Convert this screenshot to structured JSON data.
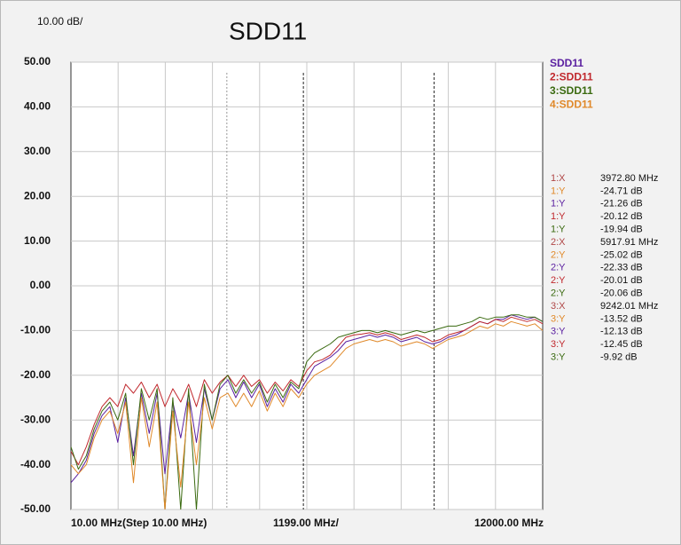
{
  "chart_data": {
    "type": "line",
    "title": "SDD11",
    "scale_label": "10.00 dB/",
    "x_axis_labels": {
      "start": "10.00 MHz(Step 10.00 MHz)",
      "scale": "1199.00 MHz/",
      "stop": "12000.00 MHz"
    },
    "xlim": [
      10,
      12000
    ],
    "ylim": [
      -50,
      50
    ],
    "yticks": [
      {
        "value": 50,
        "label": "50.00"
      },
      {
        "value": 40,
        "label": "40.00"
      },
      {
        "value": 30,
        "label": "30.00"
      },
      {
        "value": 20,
        "label": "20.00"
      },
      {
        "value": 10,
        "label": "10.00"
      },
      {
        "value": 0,
        "label": "0.00"
      },
      {
        "value": -10,
        "label": "-10.00"
      },
      {
        "value": -20,
        "label": "-20.00"
      },
      {
        "value": -30,
        "label": "-30.00"
      },
      {
        "value": -40,
        "label": "-40.00"
      },
      {
        "value": -50,
        "label": "-50.00"
      }
    ],
    "grid": true,
    "legend": "top-right",
    "x": [
      10,
      200,
      400,
      600,
      800,
      1000,
      1200,
      1400,
      1600,
      1800,
      2000,
      2200,
      2400,
      2600,
      2800,
      3000,
      3200,
      3400,
      3600,
      3800,
      4000,
      4200,
      4400,
      4600,
      4800,
      5000,
      5200,
      5400,
      5600,
      5800,
      6000,
      6200,
      6400,
      6600,
      6800,
      7000,
      7200,
      7400,
      7600,
      7800,
      8000,
      8200,
      8400,
      8600,
      8800,
      9000,
      9200,
      9400,
      9600,
      9800,
      10000,
      10200,
      10400,
      10600,
      10800,
      11000,
      11200,
      11400,
      11600,
      11800,
      12000
    ],
    "series": [
      {
        "name": "SDD11",
        "color": "#5a1fa0",
        "values": [
          -44,
          -42,
          -39,
          -33,
          -29,
          -27,
          -35,
          -25,
          -38,
          -24,
          -33,
          -24,
          -42,
          -26,
          -34,
          -24,
          -35,
          -23,
          -30,
          -23,
          -21,
          -25,
          -21.5,
          -25,
          -22,
          -27,
          -23,
          -26,
          -22,
          -24,
          -21,
          -18,
          -17,
          -16,
          -14.5,
          -12.5,
          -12,
          -11.5,
          -11,
          -11.5,
          -11,
          -11.5,
          -12.5,
          -12,
          -11.5,
          -12.5,
          -13,
          -12.5,
          -11.5,
          -11,
          -10,
          -9,
          -8,
          -8.5,
          -7.5,
          -7.5,
          -6.5,
          -7,
          -7.5,
          -7,
          -8
        ]
      },
      {
        "name": "2:SDD11",
        "color": "#c0282d",
        "values": [
          -37,
          -40,
          -36,
          -31,
          -27,
          -25,
          -27,
          -22,
          -24,
          -21.5,
          -25,
          -22,
          -27,
          -23,
          -26,
          -22,
          -27,
          -21,
          -24,
          -21.5,
          -20,
          -22.5,
          -20,
          -22.5,
          -21,
          -24,
          -21.5,
          -23.5,
          -21,
          -22.5,
          -19,
          -17,
          -16.5,
          -15.5,
          -13.5,
          -11.5,
          -11,
          -10.8,
          -10.5,
          -11,
          -10.5,
          -11,
          -12,
          -11.5,
          -11,
          -11.5,
          -12.5,
          -12,
          -11,
          -10.5,
          -10,
          -9,
          -8,
          -8.5,
          -7.5,
          -8,
          -7,
          -7.5,
          -8,
          -7.5,
          -8.5
        ]
      },
      {
        "name": "3:SDD11",
        "color": "#3a6a10",
        "values": [
          -36,
          -41,
          -38,
          -32,
          -28,
          -26,
          -30,
          -24,
          -40,
          -23,
          -30,
          -23,
          -50,
          -25,
          -50,
          -23,
          -50,
          -22,
          -30,
          -22,
          -20,
          -24,
          -21,
          -24,
          -21.5,
          -26,
          -22,
          -25,
          -21.5,
          -23,
          -17,
          -15,
          -14,
          -13,
          -11.5,
          -11,
          -10.5,
          -10,
          -10,
          -10.5,
          -10,
          -10.5,
          -11,
          -10.5,
          -10,
          -10.5,
          -10,
          -9.5,
          -9,
          -9,
          -8.5,
          -8,
          -7,
          -7.5,
          -7,
          -7,
          -6.5,
          -6.5,
          -7,
          -7,
          -8
        ]
      },
      {
        "name": "4:SDD11",
        "color": "#e0892a",
        "values": [
          -40,
          -42,
          -40,
          -34,
          -30,
          -28,
          -33,
          -26,
          -44,
          -25,
          -36,
          -26,
          -50,
          -28,
          -45,
          -26,
          -40,
          -25,
          -32,
          -25,
          -24,
          -27,
          -24,
          -27,
          -23.5,
          -28,
          -24,
          -27,
          -23,
          -25,
          -22,
          -20,
          -19,
          -18,
          -16,
          -14,
          -13,
          -12.5,
          -12,
          -12.5,
          -12,
          -12.5,
          -13.5,
          -13,
          -12.5,
          -13,
          -14,
          -13,
          -12,
          -11.5,
          -11,
          -10,
          -9,
          -9.5,
          -8.5,
          -9,
          -8,
          -8.5,
          -9,
          -8.5,
          -10
        ]
      }
    ],
    "markers": [
      {
        "label": "1:X",
        "color": "#b04848",
        "x": 3972.8,
        "x_value_label": "3972.80 MHz",
        "readouts": [
          {
            "label": "1:Y",
            "color": "#e0892a",
            "value": -24.71,
            "value_label": "-24.71 dB"
          },
          {
            "label": "1:Y",
            "color": "#5a1fa0",
            "value": -21.26,
            "value_label": "-21.26 dB"
          },
          {
            "label": "1:Y",
            "color": "#c0282d",
            "value": -20.12,
            "value_label": "-20.12 dB"
          },
          {
            "label": "1:Y",
            "color": "#3a6a10",
            "value": -19.94,
            "value_label": "-19.94 dB"
          }
        ]
      },
      {
        "label": "2:X",
        "color": "#b04848",
        "x": 5917.91,
        "x_value_label": "5917.91 MHz",
        "readouts": [
          {
            "label": "2:Y",
            "color": "#e0892a",
            "value": -25.02,
            "value_label": "-25.02 dB"
          },
          {
            "label": "2:Y",
            "color": "#5a1fa0",
            "value": -22.33,
            "value_label": "-22.33 dB"
          },
          {
            "label": "2:Y",
            "color": "#c0282d",
            "value": -20.01,
            "value_label": "-20.01 dB"
          },
          {
            "label": "2:Y",
            "color": "#3a6a10",
            "value": -20.06,
            "value_label": "-20.06 dB"
          }
        ]
      },
      {
        "label": "3:X",
        "color": "#b04848",
        "x": 9242.01,
        "x_value_label": "9242.01 MHz",
        "readouts": [
          {
            "label": "3:Y",
            "color": "#e0892a",
            "value": -13.52,
            "value_label": "-13.52 dB"
          },
          {
            "label": "3:Y",
            "color": "#5a1fa0",
            "value": -12.13,
            "value_label": "-12.13 dB"
          },
          {
            "label": "3:Y",
            "color": "#c0282d",
            "value": -12.45,
            "value_label": "-12.45 dB"
          },
          {
            "label": "3:Y",
            "color": "#3a6a10",
            "value": -9.92,
            "value_label": "-9.92 dB"
          }
        ]
      }
    ]
  }
}
